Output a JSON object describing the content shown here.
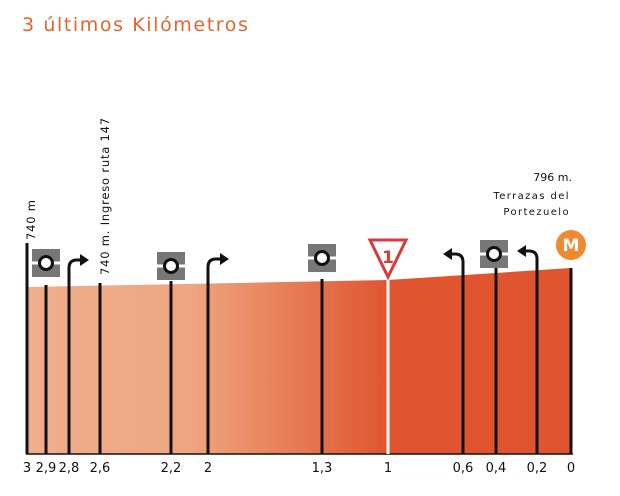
{
  "title": "3 últimos Kilómetros",
  "colors": {
    "title": "#e0662c",
    "profile_start": "#f0ae8d",
    "profile_mid": "#e98c5e",
    "profile_end": "#e0542f",
    "finish_badge": "#f08a32",
    "sign_red": "#d83a3a"
  },
  "chart_data": {
    "type": "area",
    "x_ticks": [
      "3",
      "2,9",
      "2,8",
      "2,6",
      "2,2",
      "2",
      "1,3",
      "1",
      "0,6",
      "0,4",
      "0,2",
      "0"
    ],
    "start_altitude_label": "740 m",
    "annotations": {
      "junction": "740 m. Ingreso ruta 147",
      "finish_altitude": "796 m.",
      "finish_place_line1": "Terrazas del",
      "finish_place_line2": "Portezuelo"
    },
    "flamme_rouge_label": "1",
    "finish_icon": "M",
    "markers": [
      {
        "km": 2.9,
        "kind": "roundabout-icon"
      },
      {
        "km": 2.8,
        "kind": "turn-right-icon"
      },
      {
        "km": 2.2,
        "kind": "roundabout-icon"
      },
      {
        "km": 2.0,
        "kind": "turn-right-icon"
      },
      {
        "km": 1.3,
        "kind": "roundabout-icon"
      },
      {
        "km": 1.0,
        "kind": "flamme-rouge-icon"
      },
      {
        "km": 0.6,
        "kind": "turn-left-icon"
      },
      {
        "km": 0.4,
        "kind": "roundabout-icon"
      },
      {
        "km": 0.2,
        "kind": "turn-left-icon"
      },
      {
        "km": 0.0,
        "kind": "finish-icon"
      }
    ]
  }
}
